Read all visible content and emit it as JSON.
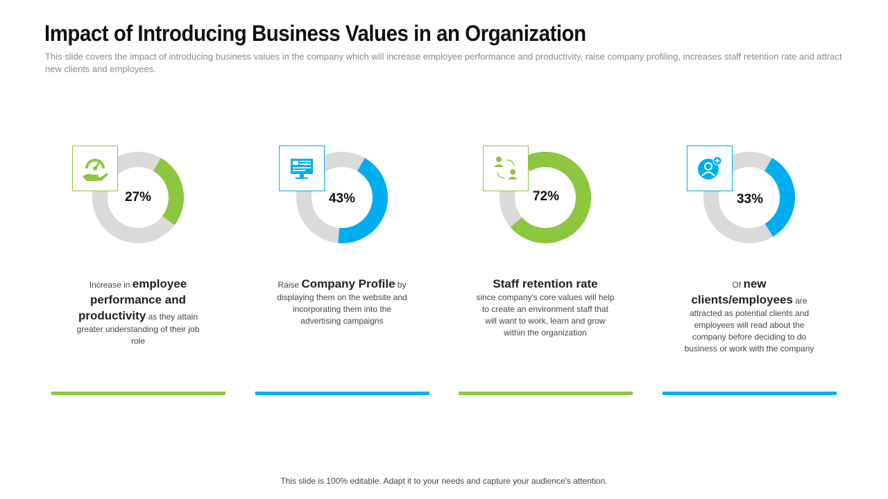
{
  "slide": {
    "title": "Impact of Introducing Business Values in an Organization",
    "subtitle": "This slide covers the impact of introducing business values in the company which will increase employee performance and productivity, raise company profiling, increases staff retention rate and attract new clients and employees.",
    "footer": "This slide is 100% editable. Adapt it to your needs and capture your audience's attention."
  },
  "colors": {
    "green": "#8dc63f",
    "blue": "#00aeef",
    "track": "#dadada"
  },
  "cards": [
    {
      "percent_label": "27%",
      "percent": 27,
      "color": "green",
      "icon": "gauge-hand-icon",
      "pre": "Increase in ",
      "highlight": "employee performance and productivity",
      "post": " as they attain greater understanding of their job role"
    },
    {
      "percent_label": "43%",
      "percent": 43,
      "color": "blue",
      "icon": "monitor-dashboard-icon",
      "pre": "Raise ",
      "highlight": "Company Profile",
      "post": " by displaying them on the website and incorporating them into the advertising campaigns"
    },
    {
      "percent_label": "72%",
      "percent": 72,
      "color": "green",
      "icon": "people-exchange-icon",
      "pre": "",
      "highlight": "Staff retention rate",
      "post": "since company's core values will help to create an environment staff that will want to work, learn and grow within the organization"
    },
    {
      "percent_label": "33%",
      "percent": 33,
      "color": "blue",
      "icon": "add-user-icon",
      "pre": "Of ",
      "highlight": "new clients/employees",
      "post": " are attracted as potential clients and employees will read about the company before deciding to do business or work with the company"
    }
  ]
}
